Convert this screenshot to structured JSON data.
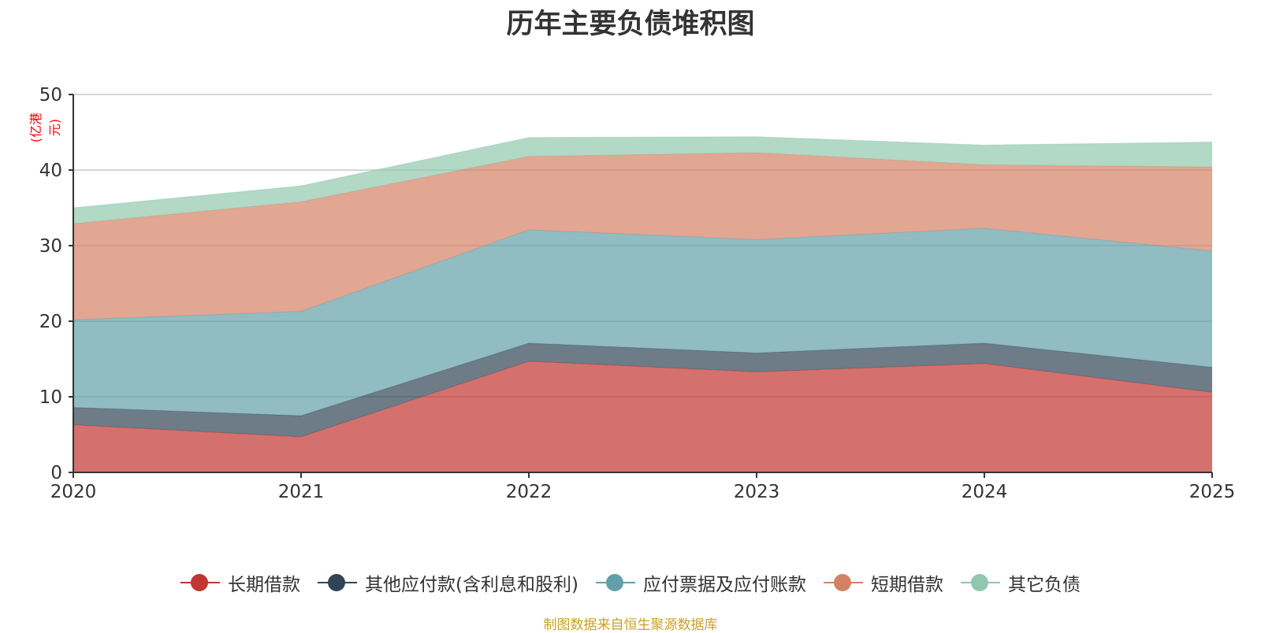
{
  "chart_data": {
    "type": "area",
    "stacked": true,
    "title": "历年主要负债堆积图",
    "ylabel": "(亿港元)",
    "xlabel": "",
    "x": [
      "2020",
      "2021",
      "2022",
      "2023",
      "2024",
      "2025"
    ],
    "ylim": [
      0,
      50
    ],
    "yticks": [
      0,
      10,
      20,
      30,
      40,
      50
    ],
    "grid": true,
    "legend_position": "bottom-center",
    "series": [
      {
        "name": "长期借款",
        "color": "#c23531",
        "values": [
          6.3,
          4.7,
          14.7,
          13.3,
          14.4,
          10.6
        ]
      },
      {
        "name": "其他应付款(含利息和股利)",
        "color": "#2f4554",
        "values": [
          2.3,
          2.8,
          2.4,
          2.5,
          2.7,
          3.3
        ]
      },
      {
        "name": "应付票据及应付账款",
        "color": "#61a0a8",
        "values": [
          11.6,
          13.8,
          15.0,
          15.0,
          15.2,
          15.4
        ]
      },
      {
        "name": "短期借款",
        "color": "#d48265",
        "values": [
          12.7,
          14.5,
          9.7,
          11.5,
          8.4,
          11.1
        ]
      },
      {
        "name": "其它负债",
        "color": "#91c7ae",
        "values": [
          2.1,
          2.1,
          2.5,
          2.1,
          2.6,
          3.3
        ]
      }
    ]
  },
  "unit_color": "#ff0000",
  "source_note": "制图数据来自恒生聚源数据库",
  "source_color": "#c9a227"
}
